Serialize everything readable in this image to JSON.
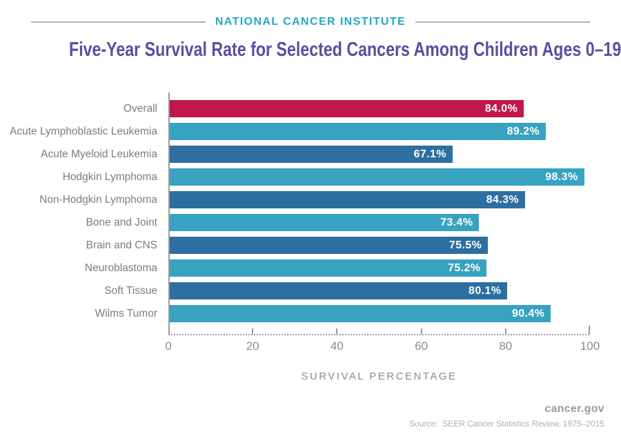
{
  "masthead": {
    "institute": "NATIONAL CANCER INSTITUTE"
  },
  "title": "Five-Year Survival Rate for Selected Cancers Among Children Ages 0–19",
  "chart_data": {
    "type": "bar",
    "orientation": "horizontal",
    "title": "Five-Year Survival Rate for Selected Cancers Among Children Ages 0–19",
    "xlabel": "SURVIVAL PERCENTAGE",
    "xlim": [
      0,
      100
    ],
    "x_ticks": [
      0,
      20,
      40,
      60,
      80,
      100
    ],
    "grid": false,
    "legend": "none",
    "categories": [
      "Overall",
      "Acute Lymphoblastic Leukemia",
      "Acute Myeloid Leukemia",
      "Hodgkin Lymphoma",
      "Non-Hodgkin Lymphoma",
      "Bone and Joint",
      "Brain and CNS",
      "Neuroblastoma",
      "Soft Tissue",
      "Wilms Tumor"
    ],
    "values": [
      84.0,
      89.2,
      67.1,
      98.3,
      84.3,
      73.4,
      75.5,
      75.2,
      80.1,
      90.4
    ],
    "value_labels": [
      "84.0%",
      "89.2%",
      "67.1%",
      "98.3%",
      "84.3%",
      "73.4%",
      "75.5%",
      "75.2%",
      "80.1%",
      "90.4%"
    ],
    "bar_palette": {
      "highlight": "#c1174a",
      "light": "#38a2c1",
      "dark": "#2d6fa0"
    },
    "bar_color_keys": [
      "highlight",
      "light",
      "dark",
      "light",
      "dark",
      "light",
      "dark",
      "light",
      "dark",
      "light"
    ],
    "colors": {
      "title": "#5b4ea1",
      "institute": "#23a8c6",
      "category_labels": "#7d7d7d",
      "axis": "#9a9a9a",
      "tick_labels": "#8a8a8a",
      "value_text": "#ffffff"
    }
  },
  "footer": {
    "brand": "cancer.gov",
    "source": "Source:  SEER Cancer Statistics Review, 1975–2015"
  }
}
